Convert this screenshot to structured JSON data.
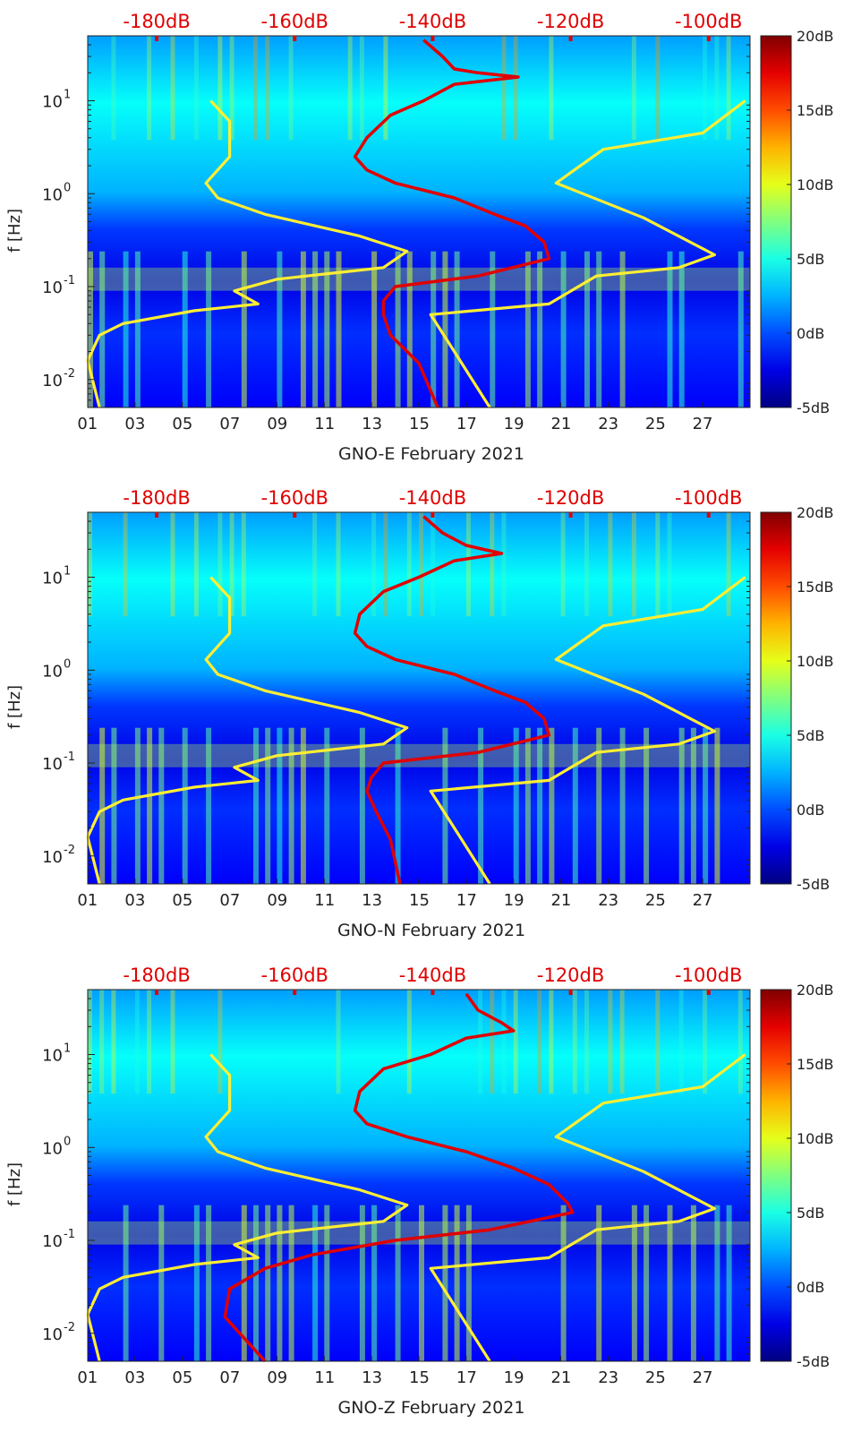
{
  "chart_data": [
    {
      "type": "heatmap",
      "xlabel": "GNO-E February 2021",
      "ylabel": "f [Hz]",
      "x_ticks": [
        "01",
        "03",
        "05",
        "07",
        "09",
        "11",
        "13",
        "15",
        "17",
        "19",
        "21",
        "23",
        "25",
        "27"
      ],
      "x_range_days": [
        1,
        29
      ],
      "ylim_hz": [
        0.005,
        50
      ],
      "y_scale": "log",
      "y_ticks": [
        {
          "v": 0.01,
          "b": "10",
          "e": "-2"
        },
        {
          "v": 0.1,
          "b": "10",
          "e": "-1"
        },
        {
          "v": 1,
          "b": "10",
          "e": "0"
        },
        {
          "v": 10,
          "b": "10",
          "e": "1"
        }
      ],
      "top_axis": {
        "labels": [
          "-180dB",
          "-160dB",
          "-140dB",
          "-120dB",
          "-100dB"
        ],
        "values_db": [
          -180,
          -160,
          -140,
          -120,
          -100
        ],
        "range_db": [
          -190,
          -94
        ],
        "color": "#e00000"
      },
      "colorbar": {
        "labels": [
          "20dB",
          "15dB",
          "10dB",
          "5dB",
          "0dB",
          "-5dB"
        ],
        "range_db": [
          -5,
          20
        ],
        "colormap": "jet"
      },
      "series": [
        {
          "color": "#ffee33",
          "points": [
            [
              6.2,
              10
            ],
            [
              7.0,
              6
            ],
            [
              7.0,
              2.5
            ],
            [
              6.0,
              1.3
            ],
            [
              6.5,
              0.9
            ],
            [
              8.5,
              0.6
            ],
            [
              12.5,
              0.35
            ],
            [
              14.5,
              0.24
            ],
            [
              13.5,
              0.16
            ],
            [
              9.0,
              0.12
            ],
            [
              7.2,
              0.09
            ],
            [
              8.2,
              0.065
            ],
            [
              5.5,
              0.055
            ],
            [
              2.5,
              0.04
            ],
            [
              1.5,
              0.03
            ],
            [
              1.0,
              0.016
            ],
            [
              1.5,
              0.005
            ]
          ]
        },
        {
          "color": "#ffee33",
          "points": [
            [
              28.8,
              10
            ],
            [
              27.0,
              4.5
            ],
            [
              22.8,
              3.0
            ],
            [
              20.8,
              1.3
            ],
            [
              24.5,
              0.55
            ],
            [
              27.5,
              0.22
            ],
            [
              26.0,
              0.16
            ],
            [
              22.5,
              0.13
            ],
            [
              20.5,
              0.065
            ],
            [
              15.5,
              0.05
            ],
            [
              16.5,
              0.02
            ],
            [
              18.0,
              0.005
            ]
          ]
        },
        {
          "color": "#e00000",
          "points": [
            [
              15.2,
              45
            ],
            [
              16.0,
              30
            ],
            [
              16.5,
              22
            ],
            [
              17.5,
              20
            ],
            [
              19.2,
              18
            ],
            [
              16.5,
              15
            ],
            [
              15.2,
              10
            ],
            [
              13.8,
              7
            ],
            [
              12.8,
              4
            ],
            [
              12.3,
              2.5
            ],
            [
              12.8,
              1.8
            ],
            [
              14.0,
              1.3
            ],
            [
              16.5,
              0.9
            ],
            [
              18.2,
              0.6
            ],
            [
              19.5,
              0.45
            ],
            [
              20.3,
              0.3
            ],
            [
              20.5,
              0.2
            ],
            [
              17.5,
              0.13
            ],
            [
              14.0,
              0.1
            ],
            [
              13.5,
              0.07
            ],
            [
              13.5,
              0.05
            ],
            [
              13.8,
              0.03
            ],
            [
              15.0,
              0.015
            ],
            [
              15.8,
              0.005
            ]
          ]
        }
      ]
    },
    {
      "type": "heatmap",
      "xlabel": "GNO-N February 2021",
      "ylabel": "f [Hz]",
      "x_ticks": [
        "01",
        "03",
        "05",
        "07",
        "09",
        "11",
        "13",
        "15",
        "17",
        "19",
        "21",
        "23",
        "25",
        "27"
      ],
      "x_range_days": [
        1,
        29
      ],
      "ylim_hz": [
        0.005,
        50
      ],
      "y_scale": "log",
      "y_ticks": [
        {
          "v": 0.01,
          "b": "10",
          "e": "-2"
        },
        {
          "v": 0.1,
          "b": "10",
          "e": "-1"
        },
        {
          "v": 1,
          "b": "10",
          "e": "0"
        },
        {
          "v": 10,
          "b": "10",
          "e": "1"
        }
      ],
      "top_axis": {
        "labels": [
          "-180dB",
          "-160dB",
          "-140dB",
          "-120dB",
          "-100dB"
        ],
        "values_db": [
          -180,
          -160,
          -140,
          -120,
          -100
        ],
        "range_db": [
          -190,
          -94
        ],
        "color": "#e00000"
      },
      "colorbar": {
        "labels": [
          "20dB",
          "15dB",
          "10dB",
          "5dB",
          "0dB",
          "-5dB"
        ],
        "range_db": [
          -5,
          20
        ],
        "colormap": "jet"
      },
      "series": [
        {
          "color": "#ffee33",
          "points": [
            [
              6.2,
              10
            ],
            [
              7.0,
              6
            ],
            [
              7.0,
              2.5
            ],
            [
              6.0,
              1.3
            ],
            [
              6.5,
              0.9
            ],
            [
              8.5,
              0.6
            ],
            [
              12.5,
              0.35
            ],
            [
              14.5,
              0.24
            ],
            [
              13.5,
              0.16
            ],
            [
              9.0,
              0.12
            ],
            [
              7.2,
              0.09
            ],
            [
              8.2,
              0.065
            ],
            [
              5.5,
              0.055
            ],
            [
              2.5,
              0.04
            ],
            [
              1.5,
              0.03
            ],
            [
              1.0,
              0.016
            ],
            [
              1.5,
              0.005
            ]
          ]
        },
        {
          "color": "#ffee33",
          "points": [
            [
              28.8,
              10
            ],
            [
              27.0,
              4.5
            ],
            [
              22.8,
              3.0
            ],
            [
              20.8,
              1.3
            ],
            [
              24.5,
              0.55
            ],
            [
              27.5,
              0.22
            ],
            [
              26.0,
              0.16
            ],
            [
              22.5,
              0.13
            ],
            [
              20.5,
              0.065
            ],
            [
              15.5,
              0.05
            ],
            [
              16.5,
              0.02
            ],
            [
              18.0,
              0.005
            ]
          ]
        },
        {
          "color": "#e00000",
          "points": [
            [
              15.2,
              45
            ],
            [
              16.0,
              30
            ],
            [
              17.0,
              22
            ],
            [
              18.5,
              18
            ],
            [
              16.5,
              15
            ],
            [
              15.0,
              10
            ],
            [
              13.5,
              7
            ],
            [
              12.5,
              4
            ],
            [
              12.3,
              2.5
            ],
            [
              12.8,
              1.8
            ],
            [
              14.0,
              1.3
            ],
            [
              16.5,
              0.9
            ],
            [
              18.2,
              0.6
            ],
            [
              19.5,
              0.45
            ],
            [
              20.3,
              0.3
            ],
            [
              20.5,
              0.2
            ],
            [
              17.5,
              0.13
            ],
            [
              13.5,
              0.1
            ],
            [
              13.0,
              0.07
            ],
            [
              12.8,
              0.05
            ],
            [
              13.2,
              0.03
            ],
            [
              13.8,
              0.015
            ],
            [
              14.2,
              0.005
            ]
          ]
        }
      ]
    },
    {
      "type": "heatmap",
      "xlabel": "GNO-Z February 2021",
      "ylabel": "f [Hz]",
      "x_ticks": [
        "01",
        "03",
        "05",
        "07",
        "09",
        "11",
        "13",
        "15",
        "17",
        "19",
        "21",
        "23",
        "25",
        "27"
      ],
      "x_range_days": [
        1,
        29
      ],
      "ylim_hz": [
        0.005,
        50
      ],
      "y_scale": "log",
      "y_ticks": [
        {
          "v": 0.01,
          "b": "10",
          "e": "-2"
        },
        {
          "v": 0.1,
          "b": "10",
          "e": "-1"
        },
        {
          "v": 1,
          "b": "10",
          "e": "0"
        },
        {
          "v": 10,
          "b": "10",
          "e": "1"
        }
      ],
      "top_axis": {
        "labels": [
          "-180dB",
          "-160dB",
          "-140dB",
          "-120dB",
          "-100dB"
        ],
        "values_db": [
          -180,
          -160,
          -140,
          -120,
          -100
        ],
        "range_db": [
          -190,
          -94
        ],
        "color": "#e00000"
      },
      "colorbar": {
        "labels": [
          "20dB",
          "15dB",
          "10dB",
          "5dB",
          "0dB",
          "-5dB"
        ],
        "range_db": [
          -5,
          20
        ],
        "colormap": "jet"
      },
      "series": [
        {
          "color": "#ffee33",
          "points": [
            [
              6.2,
              10
            ],
            [
              7.0,
              6
            ],
            [
              7.0,
              2.5
            ],
            [
              6.0,
              1.3
            ],
            [
              6.5,
              0.9
            ],
            [
              8.5,
              0.6
            ],
            [
              12.5,
              0.35
            ],
            [
              14.5,
              0.24
            ],
            [
              13.5,
              0.16
            ],
            [
              9.0,
              0.12
            ],
            [
              7.2,
              0.09
            ],
            [
              8.2,
              0.065
            ],
            [
              5.5,
              0.055
            ],
            [
              2.5,
              0.04
            ],
            [
              1.5,
              0.03
            ],
            [
              1.0,
              0.016
            ],
            [
              1.5,
              0.005
            ]
          ]
        },
        {
          "color": "#ffee33",
          "points": [
            [
              28.8,
              10
            ],
            [
              27.0,
              4.5
            ],
            [
              22.8,
              3.0
            ],
            [
              20.8,
              1.3
            ],
            [
              24.5,
              0.55
            ],
            [
              27.5,
              0.22
            ],
            [
              26.0,
              0.16
            ],
            [
              22.5,
              0.13
            ],
            [
              20.5,
              0.065
            ],
            [
              15.5,
              0.05
            ],
            [
              16.5,
              0.02
            ],
            [
              18.0,
              0.005
            ]
          ]
        },
        {
          "color": "#e00000",
          "points": [
            [
              17.0,
              45
            ],
            [
              17.5,
              30
            ],
            [
              18.5,
              22
            ],
            [
              19.0,
              18
            ],
            [
              17.0,
              15
            ],
            [
              15.5,
              10
            ],
            [
              13.5,
              7
            ],
            [
              12.5,
              4
            ],
            [
              12.3,
              2.5
            ],
            [
              12.8,
              1.8
            ],
            [
              14.5,
              1.3
            ],
            [
              17.0,
              0.9
            ],
            [
              19.0,
              0.6
            ],
            [
              20.5,
              0.4
            ],
            [
              21.3,
              0.25
            ],
            [
              21.5,
              0.2
            ],
            [
              18.0,
              0.13
            ],
            [
              14.0,
              0.1
            ],
            [
              10.5,
              0.07
            ],
            [
              8.5,
              0.05
            ],
            [
              7.0,
              0.03
            ],
            [
              6.8,
              0.015
            ],
            [
              8.5,
              0.005
            ]
          ]
        }
      ]
    }
  ]
}
